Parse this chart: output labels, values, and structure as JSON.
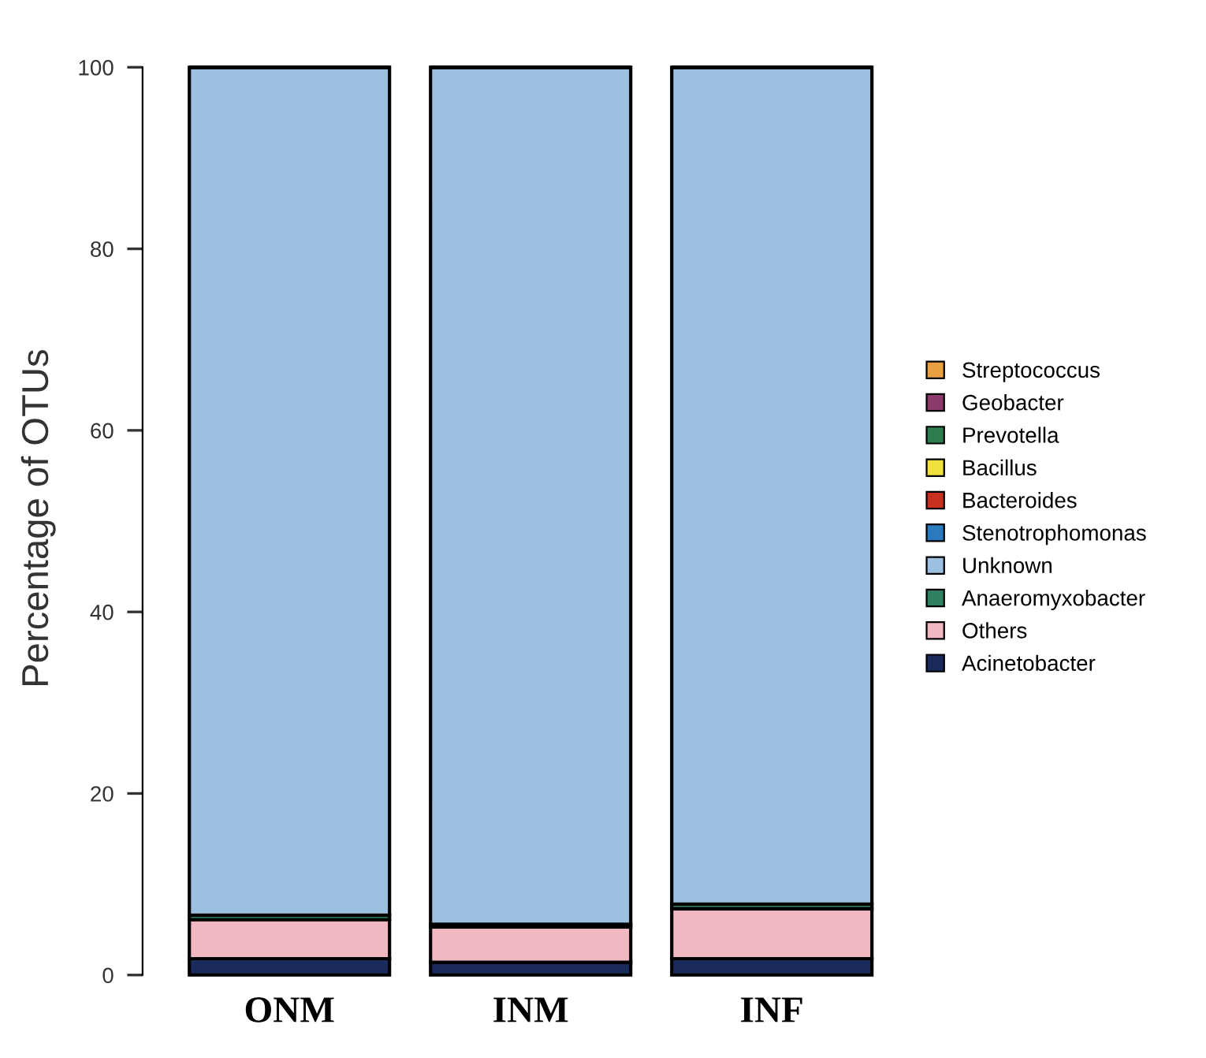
{
  "chart_data": {
    "type": "bar",
    "stacked": true,
    "ylabel": "Percentage of OTUs",
    "categories": [
      "ONM",
      "INM",
      "INF"
    ],
    "ylim": [
      0,
      100
    ],
    "yticks": [
      0,
      20,
      40,
      60,
      80,
      100
    ],
    "grid": false,
    "legend": "right",
    "series": [
      {
        "name": "Acinetobacter",
        "color": "#1a2a5a",
        "values": [
          1.8,
          1.4,
          1.8
        ]
      },
      {
        "name": "Others",
        "color": "#f0b8c0",
        "values": [
          4.3,
          3.9,
          5.5
        ]
      },
      {
        "name": "Anaeromyxobacter",
        "color": "#2e8060",
        "values": [
          0.5,
          0.3,
          0.5
        ]
      },
      {
        "name": "Unknown",
        "color": "#9ec0e0",
        "values": [
          93.4,
          94.4,
          92.2
        ]
      },
      {
        "name": "Stenotrophomonas",
        "color": "#2a7ac0",
        "values": [
          null,
          null,
          null
        ]
      },
      {
        "name": "Bacteroides",
        "color": "#c83020",
        "values": [
          null,
          null,
          null
        ]
      },
      {
        "name": "Bacillus",
        "color": "#f0e040",
        "values": [
          null,
          null,
          null
        ]
      },
      {
        "name": "Prevotella",
        "color": "#2e7d4f",
        "values": [
          null,
          null,
          null
        ]
      },
      {
        "name": "Geobacter",
        "color": "#8b3a6b",
        "values": [
          null,
          null,
          null
        ]
      },
      {
        "name": "Streptococcus",
        "color": "#e8a040",
        "values": [
          null,
          null,
          null
        ]
      }
    ]
  }
}
